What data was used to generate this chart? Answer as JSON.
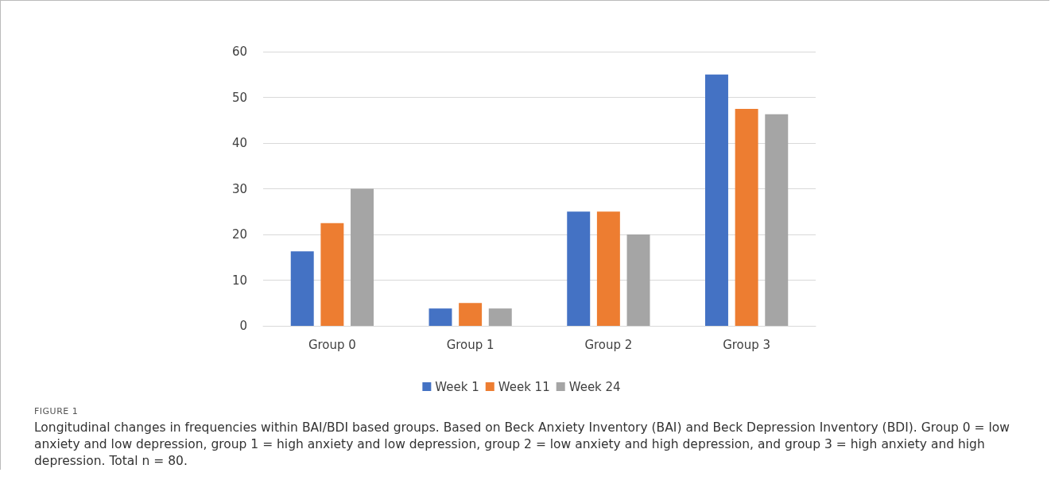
{
  "chart_data": {
    "type": "bar",
    "categories": [
      "Group 0",
      "Group 1",
      "Group 2",
      "Group 3"
    ],
    "series": [
      {
        "name": "Week 1",
        "color": "#4472c4",
        "values": [
          16.3,
          3.8,
          25,
          55
        ]
      },
      {
        "name": "Week 11",
        "color": "#ed7d31",
        "values": [
          22.5,
          5,
          25,
          47.5
        ]
      },
      {
        "name": "Week 24",
        "color": "#a5a5a5",
        "values": [
          30,
          3.8,
          20,
          46.3
        ]
      }
    ],
    "ylim": [
      0,
      60
    ],
    "yticks": [
      0,
      10,
      20,
      30,
      40,
      50,
      60
    ],
    "grid": "y",
    "legend": "bottom",
    "annotations": [
      "FIGURE 1",
      "Longitudinal changes in frequencies within BAI/BDI based groups. Based on Beck Anxiety Inventory (BAI) and Beck Depression Inventory (BDI). Group 0 = low anxiety and low depression, group 1 = high anxiety and low depression, group 2 = low anxiety and high depression, and group 3 = high anxiety and high depression. Total n = 80."
    ]
  }
}
